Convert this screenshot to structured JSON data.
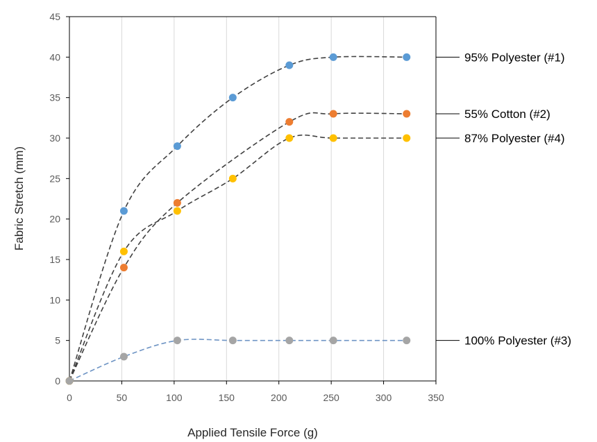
{
  "chart_data": {
    "type": "scatter",
    "title": "",
    "xlabel": "Applied Tensile Force (g)",
    "ylabel": "Fabric Stretch (mm)",
    "xlim": [
      0,
      350
    ],
    "ylim": [
      0,
      45
    ],
    "xticks": [
      0,
      50,
      100,
      150,
      200,
      250,
      300,
      350
    ],
    "yticks": [
      0,
      5,
      10,
      15,
      20,
      25,
      30,
      35,
      40,
      45
    ],
    "grid": "vertical",
    "legend": "labels at right of plot with leader lines",
    "series": [
      {
        "name": "95% Polyester (#1)",
        "color": "#5B9BD5",
        "trend_color": "#404040",
        "label_y": 40,
        "points": [
          [
            0,
            0
          ],
          [
            52,
            21
          ],
          [
            103,
            29
          ],
          [
            156,
            35
          ],
          [
            210,
            39
          ],
          [
            252,
            40
          ],
          [
            322,
            40
          ]
        ]
      },
      {
        "name": "55% Cotton (#2)",
        "color": "#ED7D31",
        "trend_color": "#404040",
        "label_y": 33,
        "points": [
          [
            0,
            0
          ],
          [
            52,
            14
          ],
          [
            103,
            22
          ],
          [
            210,
            32
          ],
          [
            252,
            33
          ],
          [
            322,
            33
          ]
        ]
      },
      {
        "name": "87% Polyester (#4)",
        "color": "#FFC000",
        "trend_color": "#404040",
        "label_y": 30,
        "points": [
          [
            0,
            0
          ],
          [
            52,
            16
          ],
          [
            103,
            21
          ],
          [
            156,
            25
          ],
          [
            210,
            30
          ],
          [
            252,
            30
          ],
          [
            322,
            30
          ]
        ]
      },
      {
        "name": "100% Polyester (#3)",
        "color": "#A5A5A5",
        "trend_color": "#6E94C4",
        "label_y": 5,
        "points": [
          [
            0,
            0
          ],
          [
            52,
            3
          ],
          [
            103,
            5
          ],
          [
            156,
            5
          ],
          [
            210,
            5
          ],
          [
            252,
            5
          ],
          [
            322,
            5
          ]
        ]
      }
    ]
  }
}
